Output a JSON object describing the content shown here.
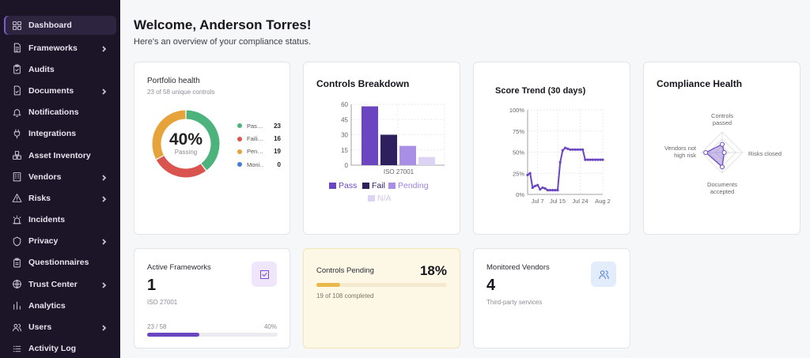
{
  "colors": {
    "sidebar_bg": "#1c1528",
    "accent": "#6b46c1",
    "pass": "#4db37c",
    "fail": "#d9534f",
    "pending": "#e6a33a",
    "monitoring": "#4a7bd8",
    "pending_card_bg": "#fdf8e6",
    "pending_bar": "#e8b94a"
  },
  "sidebar": {
    "items": [
      {
        "label": "Dashboard",
        "icon": "grid-icon",
        "chevron": false,
        "active": true
      },
      {
        "label": "Frameworks",
        "icon": "file-text-icon",
        "chevron": true
      },
      {
        "label": "Audits",
        "icon": "clipboard-check-icon",
        "chevron": false
      },
      {
        "label": "Documents",
        "icon": "file-check-icon",
        "chevron": true
      },
      {
        "label": "Notifications",
        "icon": "bell-icon",
        "chevron": false
      },
      {
        "label": "Integrations",
        "icon": "plug-icon",
        "chevron": false
      },
      {
        "label": "Asset Inventory",
        "icon": "boxes-icon",
        "chevron": false
      },
      {
        "label": "Vendors",
        "icon": "building-icon",
        "chevron": true
      },
      {
        "label": "Risks",
        "icon": "warning-icon",
        "chevron": true
      },
      {
        "label": "Incidents",
        "icon": "siren-icon",
        "chevron": false
      },
      {
        "label": "Privacy",
        "icon": "shield-icon",
        "chevron": true
      },
      {
        "label": "Questionnaires",
        "icon": "clipboard-list-icon",
        "chevron": false
      },
      {
        "label": "Trust Center",
        "icon": "globe-icon",
        "chevron": true
      },
      {
        "label": "Analytics",
        "icon": "bar-chart-icon",
        "chevron": false
      },
      {
        "label": "Users",
        "icon": "users-icon",
        "chevron": true
      },
      {
        "label": "Activity Log",
        "icon": "log-icon",
        "chevron": false
      }
    ]
  },
  "header": {
    "welcome": "Welcome, Anderson Torres!",
    "subtitle": "Here's an overview of your compliance status."
  },
  "portfolio": {
    "title": "Portfolio health",
    "subtitle": "23 of 58 unique controls",
    "percent": "40%",
    "percent_label": "Passing",
    "legend": [
      {
        "name": "Passing",
        "short": "Pas…",
        "value": "23",
        "color": "#4db37c"
      },
      {
        "name": "Failing",
        "short": "Faili…",
        "value": "16",
        "color": "#d9534f"
      },
      {
        "name": "Pending",
        "short": "Pen…",
        "value": "19",
        "color": "#e6a33a"
      },
      {
        "name": "Monitoring",
        "short": "Moni…",
        "value": "0",
        "color": "#4a7bd8"
      }
    ]
  },
  "chart_data": [
    {
      "type": "bar",
      "title": "Controls Breakdown",
      "categories": [
        "ISO 27001"
      ],
      "ylim": [
        0,
        60
      ],
      "yticks": [
        "60",
        "45",
        "30",
        "15",
        "0"
      ],
      "series": [
        {
          "name": "Pass",
          "values": [
            58
          ],
          "color": "#6b46c1"
        },
        {
          "name": "Fail",
          "values": [
            30
          ],
          "color": "#2e1f5e"
        },
        {
          "name": "Pending",
          "values": [
            19
          ],
          "color": "#a98ee6"
        },
        {
          "name": "N/A",
          "values": [
            8
          ],
          "color": "#ddd3f5"
        }
      ],
      "grid": true,
      "legend_position": "bottom"
    },
    {
      "type": "line",
      "title": "Score Trend (30 days)",
      "ylim": [
        0,
        100
      ],
      "yticks": [
        "100%",
        "75%",
        "50%",
        "25%",
        "0%"
      ],
      "xticks": [
        "Jul 7",
        "Jul 15",
        "Jul 24",
        "Aug 2"
      ],
      "series": [
        {
          "x": [
            "Jul 3",
            "Jul 4",
            "Jul 5",
            "Jul 6",
            "Jul 7",
            "Jul 8",
            "Jul 9",
            "Jul 10",
            "Jul 11",
            "Jul 12",
            "Jul 13",
            "Jul 14",
            "Jul 15",
            "Jul 16",
            "Jul 17",
            "Jul 18",
            "Jul 19",
            "Jul 20",
            "Jul 21",
            "Jul 22",
            "Jul 23",
            "Jul 24",
            "Jul 25",
            "Jul 26",
            "Jul 27",
            "Jul 28",
            "Jul 29",
            "Jul 30",
            "Jul 31",
            "Aug 1",
            "Aug 2"
          ],
          "values": [
            23,
            25,
            8,
            10,
            11,
            6,
            8,
            7,
            5,
            5,
            5,
            5,
            5,
            38,
            52,
            55,
            54,
            53,
            53,
            53,
            53,
            53,
            53,
            41,
            41,
            41,
            41,
            41,
            41,
            41,
            41
          ],
          "color": "#6b46c1"
        }
      ],
      "grid": true
    },
    {
      "type": "radar",
      "title": "Compliance Health",
      "axes": [
        "Controls passed",
        "Risks closed",
        "Documents accepted",
        "Vendors not high risk"
      ],
      "values": [
        40,
        10,
        70,
        80
      ],
      "color": "#6b46c1"
    }
  ],
  "controls_breakdown": {
    "xlabel": "ISO 27001",
    "legend": [
      "Pass",
      "Fail",
      "Pending",
      "N/A"
    ]
  },
  "score_trend": {
    "xlabels": [
      "Jul 7",
      "Jul 15",
      "Jul 24",
      "Aug 2"
    ]
  },
  "compliance_health": {
    "labels": {
      "top1": "Controls",
      "top2": "passed",
      "right": "Risks closed",
      "bottom1": "Documents",
      "bottom2": "accepted",
      "left1": "Vendors not",
      "left2": "high risk"
    }
  },
  "active_frameworks": {
    "label": "Active Frameworks",
    "value": "1",
    "sub": "ISO 27001",
    "progress_text": "23 / 58",
    "progress_pct_text": "40%",
    "progress": 0.4,
    "icon": "checkbox-edit-icon"
  },
  "controls_pending": {
    "label": "Controls Pending",
    "percent": "18%",
    "sub": "19 of 108 completed",
    "progress": 0.18
  },
  "monitored_vendors": {
    "label": "Monitored Vendors",
    "value": "4",
    "sub": "Third-party services",
    "icon": "users-icon"
  }
}
